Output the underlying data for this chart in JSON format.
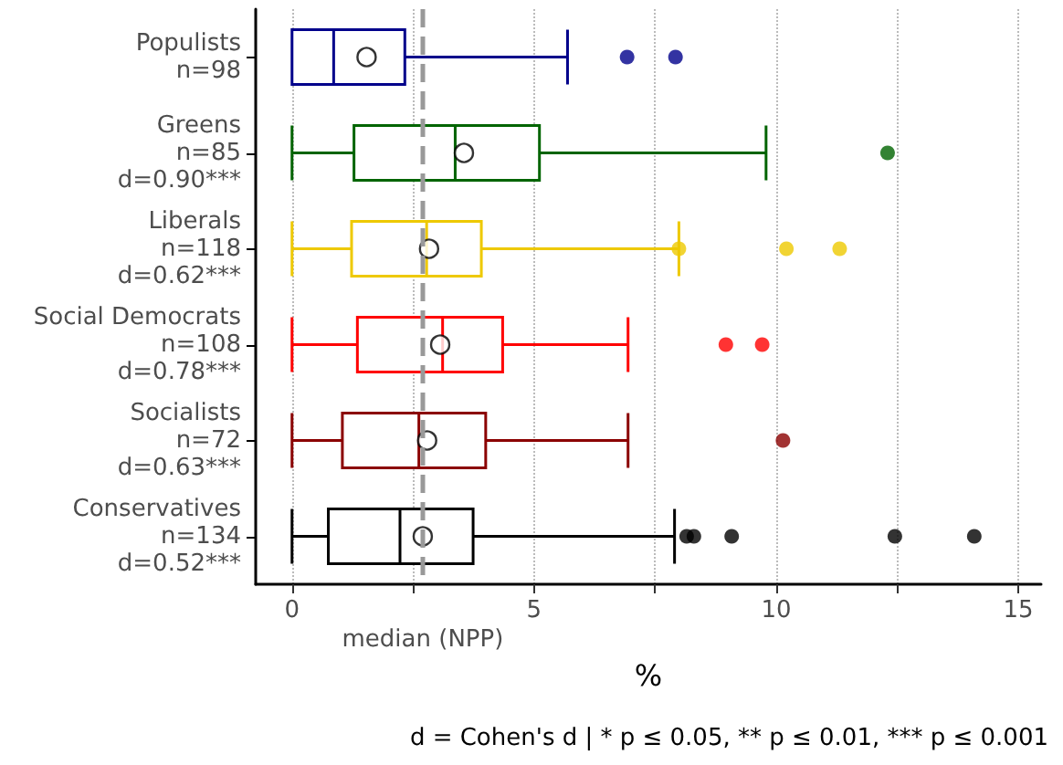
{
  "chart_data": {
    "type": "box",
    "orientation": "horizontal",
    "categories": [
      "Populists\nn=98",
      "Greens\nn=85\nd=0.90***",
      "Liberals\nn=118\nd=0.62***",
      "Social Democrats\nn=108\nd=0.78***",
      "Socialists\nn=72\nd=0.63***",
      "Conservatives\nn=134\nd=0.52***"
    ],
    "boxes": [
      {
        "low": 0,
        "q1": 0,
        "median": 0.86,
        "q3": 2.33,
        "high": 5.69,
        "mean": 1.54,
        "outliers": [
          6.92,
          7.92
        ]
      },
      {
        "low": 0,
        "q1": 1.28,
        "median": 3.37,
        "q3": 5.11,
        "high": 9.79,
        "mean": 3.55,
        "outliers": [
          12.3
        ]
      },
      {
        "low": 0,
        "q1": 1.23,
        "median": 2.78,
        "q3": 3.91,
        "high": 7.99,
        "mean": 2.83,
        "outliers": [
          7.99,
          10.21,
          11.31
        ]
      },
      {
        "low": 0,
        "q1": 1.35,
        "median": 3.11,
        "q3": 4.35,
        "high": 6.94,
        "mean": 3.06,
        "outliers": [
          8.96,
          9.71
        ]
      },
      {
        "low": 0,
        "q1": 1.04,
        "median": 2.62,
        "q3": 4.0,
        "high": 6.94,
        "mean": 2.79,
        "outliers": [
          10.14
        ]
      },
      {
        "low": 0,
        "q1": 0.75,
        "median": 2.23,
        "q3": 3.74,
        "high": 7.9,
        "mean": 2.7,
        "outliers": [
          8.15,
          8.3,
          9.08,
          12.45,
          14.09
        ]
      }
    ],
    "colors": [
      "#00008b",
      "#006400",
      "#eec900",
      "#ff0000",
      "#8b0000",
      "#000000"
    ],
    "xlabel": "%",
    "xlim": [
      -0.75,
      15.47
    ],
    "xticks": [
      0,
      {
        "value": 2.5,
        "label": null
      },
      5,
      {
        "value": 7.5,
        "label": null
      },
      10,
      {
        "value": 12.5,
        "label": null
      },
      15
    ],
    "grid": "x",
    "ref_lines": [
      {
        "axis": "x",
        "value": 2.7,
        "label": "median (NPP)",
        "color": "#999999",
        "line_style": "dashed"
      }
    ],
    "annotations": [
      "d = Cohen's d | * p ≤ 0.05, ** p ≤ 0.01, *** p ≤ 0.001"
    ]
  }
}
